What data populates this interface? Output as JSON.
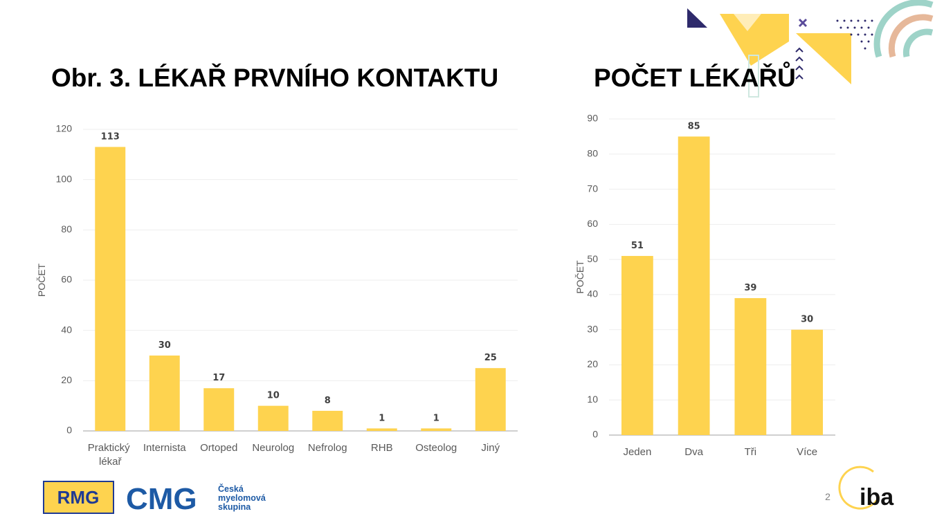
{
  "chart_data": [
    {
      "type": "bar",
      "title": "Obr. 3. LÉKAŘ PRVNÍHO KONTAKTU",
      "ylabel": "POČET",
      "categories": [
        "Praktický lékař",
        "Internista",
        "Ortoped",
        "Neurolog",
        "Nefrolog",
        "RHB",
        "Osteolog",
        "Jiný"
      ],
      "values": [
        113,
        30,
        17,
        10,
        8,
        1,
        1,
        25
      ],
      "color": "#fed34f",
      "ylim": [
        0,
        120
      ],
      "yticks": [
        0,
        20,
        40,
        60,
        80,
        100,
        120
      ],
      "grid": true
    },
    {
      "type": "bar",
      "title": "POČET LÉKAŘŮ",
      "ylabel": "POČET",
      "categories": [
        "Jeden",
        "Dva",
        "Tři",
        "Více"
      ],
      "values": [
        51,
        85,
        39,
        30
      ],
      "color": "#fed34f",
      "ylim": [
        0,
        90
      ],
      "yticks": [
        0,
        10,
        20,
        30,
        40,
        50,
        60,
        70,
        80,
        90
      ],
      "grid": true
    }
  ],
  "footer": {
    "logo_rmg": "RMG",
    "logo_cmg": "CMG",
    "cmg_name": [
      "Česká",
      "myelomová",
      "skupina"
    ],
    "logo_iba": "iba",
    "page_number": "2"
  }
}
